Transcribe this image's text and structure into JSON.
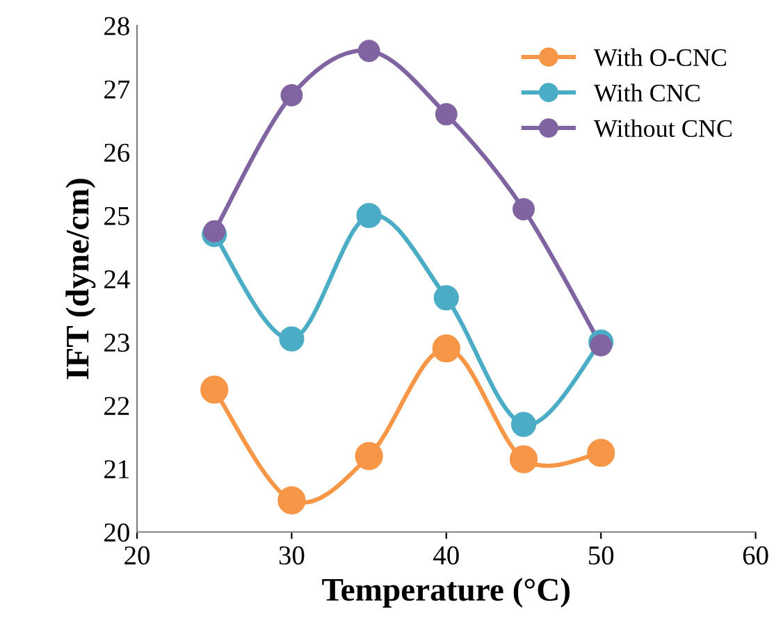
{
  "chart_data": {
    "type": "line",
    "xlabel": "Temperature (°C)",
    "ylabel": "IFT (dyne/cm)",
    "x": [
      25,
      30,
      35,
      40,
      45,
      50
    ],
    "series": [
      {
        "name": "With O-CNC",
        "color": "#f79646",
        "values": [
          22.25,
          20.5,
          21.2,
          22.9,
          21.15,
          21.25
        ]
      },
      {
        "name": "With CNC",
        "color": "#4bacc6",
        "values": [
          24.7,
          23.05,
          25.0,
          23.7,
          21.7,
          23.0
        ]
      },
      {
        "name": "Without CNC",
        "color": "#8064a2",
        "values": [
          24.75,
          26.9,
          27.6,
          26.6,
          25.1,
          22.95
        ]
      }
    ],
    "xlim": [
      20,
      60
    ],
    "xticks": [
      20,
      30,
      40,
      50,
      60
    ],
    "ylim": [
      20,
      28
    ],
    "yticks": [
      20,
      21,
      22,
      23,
      24,
      25,
      26,
      27,
      28
    ],
    "marker": "circle",
    "line_style": "solid",
    "legend": "top right",
    "grid": false
  }
}
